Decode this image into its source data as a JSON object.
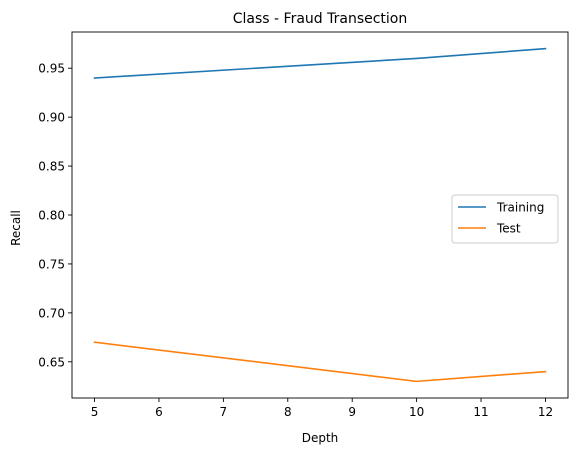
{
  "chart_data": {
    "type": "line",
    "title": "Class - Fraud Transection",
    "xlabel": "Depth",
    "ylabel": "Recall",
    "xlim": [
      4.65,
      12.35
    ],
    "ylim": [
      0.613,
      0.987
    ],
    "x_ticks": [
      5,
      6,
      7,
      8,
      9,
      10,
      11,
      12
    ],
    "y_ticks": [
      0.65,
      0.7,
      0.75,
      0.8,
      0.85,
      0.9,
      0.95
    ],
    "grid": false,
    "legend_position": "center-right",
    "series": [
      {
        "name": "Training",
        "color": "#1f77b4",
        "x": [
          5,
          10,
          12
        ],
        "y": [
          0.94,
          0.96,
          0.97
        ]
      },
      {
        "name": "Test",
        "color": "#ff7f0e",
        "x": [
          5,
          10,
          12
        ],
        "y": [
          0.67,
          0.63,
          0.64
        ]
      }
    ]
  }
}
